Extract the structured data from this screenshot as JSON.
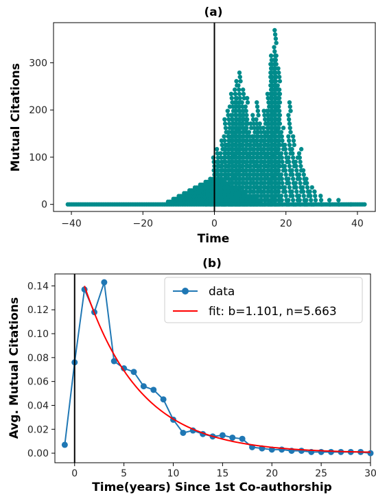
{
  "chart_data": [
    {
      "type": "scatter",
      "title": "(a)",
      "xlabel": "Time",
      "ylabel": "Mutual Citations",
      "xlim": [
        -45,
        45
      ],
      "ylim": [
        -15,
        385
      ],
      "xticks": [
        -40,
        -20,
        0,
        20,
        40
      ],
      "yticks": [
        0,
        100,
        200,
        300
      ],
      "xtick_labels": [
        "−40",
        "−20",
        "0",
        "20",
        "40"
      ],
      "ytick_labels": [
        "0",
        "100",
        "200",
        "300"
      ],
      "vline_x": 0,
      "point_color": "#008b8b",
      "series": [
        {
          "x": [
            -2,
            -1,
            0,
            0,
            1,
            1,
            2,
            2,
            3,
            3,
            3,
            4,
            4,
            5,
            5,
            5,
            6,
            6,
            6,
            7,
            7,
            7,
            8,
            8,
            9,
            9,
            10,
            10,
            11,
            11,
            12,
            12,
            13,
            13,
            14,
            14,
            15,
            15,
            16,
            16,
            16,
            17,
            17,
            17,
            18,
            18,
            19,
            20,
            21,
            22,
            23,
            24,
            25,
            26,
            27,
            28,
            30,
            32,
            35,
            38
          ],
          "y": [
            40,
            55,
            80,
            100,
            120,
            95,
            140,
            90,
            180,
            130,
            70,
            210,
            160,
            240,
            190,
            150,
            265,
            230,
            170,
            285,
            220,
            170,
            250,
            200,
            230,
            180,
            175,
            140,
            190,
            150,
            220,
            170,
            175,
            135,
            200,
            160,
            240,
            200,
            320,
            300,
            270,
            370,
            315,
            280,
            290,
            245,
            170,
            130,
            220,
            150,
            105,
            120,
            80,
            55,
            40,
            30,
            25,
            15,
            10,
            5
          ]
        }
      ]
    },
    {
      "type": "line",
      "title": "(b)",
      "xlabel": "Time(years) Since 1st Co-authorship",
      "ylabel": "Avg. Mutual Citations",
      "xlim": [
        -2,
        30
      ],
      "ylim": [
        -0.008,
        0.15
      ],
      "xticks": [
        0,
        5,
        10,
        15,
        20,
        25,
        30
      ],
      "yticks": [
        0.0,
        0.02,
        0.04,
        0.06,
        0.08,
        0.1,
        0.12,
        0.14
      ],
      "xtick_labels": [
        "0",
        "5",
        "10",
        "15",
        "20",
        "25",
        "30"
      ],
      "ytick_labels": [
        "0.00",
        "0.02",
        "0.04",
        "0.06",
        "0.08",
        "0.10",
        "0.12",
        "0.14"
      ],
      "vline_x": 0,
      "legend": "top-right",
      "series": [
        {
          "name": "data",
          "color": "#1f77b4",
          "x": [
            -1,
            0,
            1,
            2,
            3,
            4,
            5,
            6,
            7,
            8,
            9,
            10,
            11,
            12,
            13,
            14,
            15,
            16,
            17,
            18,
            19,
            20,
            21,
            22,
            23,
            24,
            25,
            26,
            27,
            28,
            29,
            30
          ],
          "y": [
            0.007,
            0.076,
            0.137,
            0.118,
            0.143,
            0.077,
            0.071,
            0.068,
            0.056,
            0.053,
            0.045,
            0.028,
            0.017,
            0.019,
            0.016,
            0.014,
            0.015,
            0.013,
            0.012,
            0.005,
            0.004,
            0.003,
            0.003,
            0.002,
            0.002,
            0.001,
            0.001,
            0.001,
            0.001,
            0.001,
            0.001,
            0.0
          ]
        },
        {
          "name": "fit: b=1.101, n=5.663",
          "color": "#ff0000",
          "b": 1.101,
          "n": 5.663,
          "x_start": 1,
          "x_end": 30
        }
      ]
    }
  ]
}
